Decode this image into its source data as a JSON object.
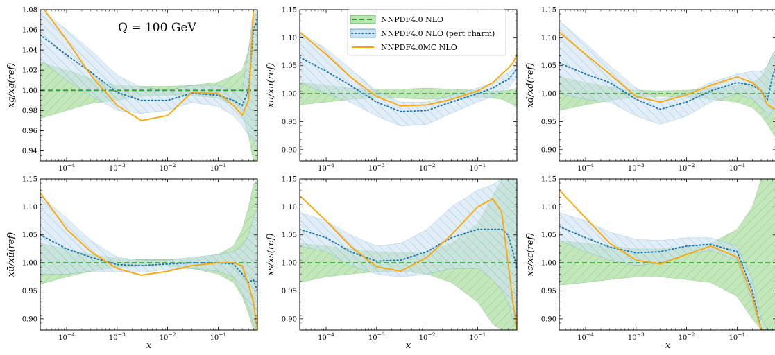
{
  "figure": {
    "annotation": "Q = 100 GeV"
  },
  "legend": {
    "entries": [
      {
        "label": "NNPDF4.0 NLO",
        "color": "#2ca02c",
        "style": "dashed",
        "band": true
      },
      {
        "label": "NNPDF4.0 NLO (pert charm)",
        "color": "#1f77b4",
        "style": "dotted",
        "band": true
      },
      {
        "label": "NNPDF4.0MC NLO",
        "color": "#ff9f00",
        "style": "solid",
        "band": false
      }
    ]
  },
  "colors": {
    "ref_band": "#b9e3b0",
    "pert_band": "#cfe3f3",
    "ref_line": "#2ca02c",
    "pert_line": "#1f77b4",
    "mc_line": "#ffa500"
  },
  "chart_data": [
    {
      "type": "line",
      "ylabel": "xg/xg(ref)",
      "xlabel": "",
      "xscale": "log",
      "xlim": [
        3e-05,
        0.6
      ],
      "ylim": [
        0.93,
        1.08
      ],
      "yticks": [
        "0.94",
        "0.96",
        "0.98",
        "1.00",
        "1.02",
        "1.04",
        "1.06",
        "1.08"
      ],
      "xticks": [
        "10^-4",
        "10^-3",
        "10^-2",
        "10^-1"
      ],
      "x": [
        3e-05,
        0.0001,
        0.0003,
        0.001,
        0.003,
        0.01,
        0.03,
        0.1,
        0.2,
        0.3,
        0.4,
        0.5,
        0.6
      ],
      "series": [
        {
          "name": "NNPDF4.0 NLO",
          "values": [
            1.0,
            1.0,
            1.0,
            1.0,
            1.0,
            1.0,
            1.0,
            1.0,
            1.0,
            1.0,
            1.0,
            1.0,
            1.0
          ],
          "band_upper": [
            1.028,
            1.02,
            1.012,
            1.005,
            1.004,
            1.004,
            1.005,
            1.008,
            1.015,
            1.02,
            1.04,
            1.07,
            1.09
          ],
          "band_lower": [
            0.972,
            0.98,
            0.987,
            0.99,
            0.994,
            0.995,
            0.995,
            0.992,
            0.985,
            0.975,
            0.955,
            0.93,
            0.91
          ]
        },
        {
          "name": "NNPDF4.0 NLO (pert charm)",
          "values": [
            1.055,
            1.035,
            1.018,
            0.998,
            0.99,
            0.99,
            0.997,
            0.995,
            0.99,
            0.985,
            1.0,
            1.06,
            1.07
          ],
          "band_upper": [
            1.08,
            1.06,
            1.04,
            1.015,
            1.003,
            1.0,
            1.005,
            1.005,
            1.0,
            1.0,
            1.04,
            1.08,
            1.09
          ],
          "band_lower": [
            1.03,
            1.01,
            0.995,
            0.98,
            0.977,
            0.98,
            0.988,
            0.984,
            0.975,
            0.965,
            0.955,
            0.95,
            0.94
          ]
        },
        {
          "name": "NNPDF4.0MC NLO",
          "values": [
            1.085,
            1.05,
            1.015,
            0.985,
            0.97,
            0.975,
            0.998,
            0.997,
            0.985,
            0.975,
            0.99,
            1.08,
            1.09
          ]
        }
      ]
    },
    {
      "type": "line",
      "ylabel": "xu/xu(ref)",
      "xlabel": "",
      "xscale": "log",
      "xlim": [
        3e-05,
        0.6
      ],
      "ylim": [
        0.88,
        1.15
      ],
      "yticks": [
        "0.90",
        "0.95",
        "1.00",
        "1.05",
        "1.10",
        "1.15"
      ],
      "xticks": [
        "10^-4",
        "10^-3",
        "10^-2",
        "10^-1"
      ],
      "x": [
        3e-05,
        0.0001,
        0.0003,
        0.001,
        0.003,
        0.01,
        0.03,
        0.1,
        0.2,
        0.3,
        0.4,
        0.5,
        0.6
      ],
      "series": [
        {
          "name": "NNPDF4.0 NLO",
          "values": [
            1.0,
            1.0,
            1.0,
            1.0,
            1.0,
            1.0,
            1.0,
            1.0,
            1.0,
            1.0,
            1.0,
            1.0,
            1.0
          ],
          "band_upper": [
            1.02,
            1.015,
            1.01,
            1.008,
            1.008,
            1.01,
            1.008,
            1.006,
            1.005,
            1.005,
            1.006,
            1.008,
            1.01
          ],
          "band_lower": [
            0.98,
            0.985,
            0.99,
            0.992,
            0.992,
            0.99,
            0.992,
            0.994,
            0.992,
            0.99,
            0.985,
            0.98,
            0.975
          ]
        },
        {
          "name": "NNPDF4.0 NLO (pert charm)",
          "values": [
            1.065,
            1.04,
            1.015,
            0.985,
            0.968,
            0.97,
            0.985,
            1.0,
            1.01,
            1.02,
            1.025,
            1.035,
            1.045
          ],
          "band_upper": [
            1.11,
            1.08,
            1.045,
            1.005,
            0.985,
            0.985,
            0.997,
            1.01,
            1.02,
            1.03,
            1.037,
            1.045,
            1.055
          ],
          "band_lower": [
            1.02,
            1.0,
            0.985,
            0.96,
            0.942,
            0.945,
            0.965,
            0.985,
            0.995,
            1.005,
            1.01,
            1.02,
            1.03
          ]
        },
        {
          "name": "NNPDF4.0MC NLO",
          "values": [
            1.11,
            1.07,
            1.03,
            0.995,
            0.978,
            0.98,
            0.99,
            1.005,
            1.02,
            1.035,
            1.045,
            1.055,
            1.07
          ]
        }
      ]
    },
    {
      "type": "line",
      "ylabel": "xd/xd(ref)",
      "xlabel": "",
      "xscale": "log",
      "xlim": [
        3e-05,
        0.6
      ],
      "ylim": [
        0.88,
        1.15
      ],
      "yticks": [
        "0.90",
        "0.95",
        "1.00",
        "1.05",
        "1.10",
        "1.15"
      ],
      "xticks": [
        "10^-4",
        "10^-3",
        "10^-2",
        "10^-1"
      ],
      "x": [
        3e-05,
        0.0001,
        0.0003,
        0.001,
        0.003,
        0.01,
        0.03,
        0.1,
        0.2,
        0.3,
        0.4,
        0.5,
        0.6
      ],
      "series": [
        {
          "name": "NNPDF4.0 NLO",
          "values": [
            1.0,
            1.0,
            1.0,
            1.0,
            1.0,
            1.0,
            1.0,
            1.0,
            1.0,
            1.0,
            1.0,
            1.0,
            1.0
          ],
          "band_upper": [
            1.03,
            1.02,
            1.012,
            1.006,
            1.005,
            1.006,
            1.01,
            1.015,
            1.02,
            1.03,
            1.05,
            1.07,
            1.08
          ],
          "band_lower": [
            0.97,
            0.98,
            0.988,
            0.994,
            0.995,
            0.994,
            0.99,
            0.985,
            0.975,
            0.96,
            0.945,
            0.93,
            0.92
          ]
        },
        {
          "name": "NNPDF4.0 NLO (pert charm)",
          "values": [
            1.055,
            1.035,
            1.02,
            0.99,
            0.972,
            0.985,
            1.005,
            1.02,
            1.015,
            1.005,
            0.99,
            1.03,
            1.05
          ],
          "band_upper": [
            1.13,
            1.09,
            1.05,
            1.01,
            0.99,
            1.0,
            1.02,
            1.035,
            1.04,
            1.04,
            1.05,
            1.07,
            1.08
          ],
          "band_lower": [
            1.0,
            0.99,
            0.985,
            0.96,
            0.945,
            0.96,
            0.985,
            1.0,
            0.99,
            0.975,
            0.955,
            0.97,
            0.98
          ]
        },
        {
          "name": "NNPDF4.0MC NLO",
          "values": [
            1.11,
            1.07,
            1.035,
            0.995,
            0.985,
            0.998,
            1.015,
            1.03,
            1.02,
            1.005,
            0.98,
            0.975,
            0.97
          ]
        }
      ]
    },
    {
      "type": "line",
      "ylabel": "xū/xū(ref)",
      "xlabel": "x",
      "xscale": "log",
      "xlim": [
        3e-05,
        0.6
      ],
      "ylim": [
        0.88,
        1.15
      ],
      "yticks": [
        "0.90",
        "0.95",
        "1.00",
        "1.05",
        "1.10",
        "1.15"
      ],
      "xticks": [
        "10^-4",
        "10^-3",
        "10^-2",
        "10^-1"
      ],
      "x": [
        3e-05,
        0.0001,
        0.0003,
        0.001,
        0.003,
        0.01,
        0.03,
        0.1,
        0.2,
        0.3,
        0.4,
        0.5,
        0.6
      ],
      "series": [
        {
          "name": "NNPDF4.0 NLO",
          "values": [
            1.0,
            1.0,
            1.0,
            1.0,
            1.0,
            1.0,
            1.0,
            1.0,
            1.0,
            1.0,
            1.0,
            1.0,
            1.0
          ],
          "band_upper": [
            1.035,
            1.025,
            1.015,
            1.008,
            1.006,
            1.006,
            1.008,
            1.015,
            1.03,
            1.06,
            1.1,
            1.14,
            1.15
          ],
          "band_lower": [
            0.962,
            0.975,
            0.985,
            0.992,
            0.994,
            0.994,
            0.99,
            0.98,
            0.965,
            0.94,
            0.91,
            0.88,
            0.88
          ]
        },
        {
          "name": "NNPDF4.0 NLO (pert charm)",
          "values": [
            1.05,
            1.025,
            1.01,
            0.997,
            0.995,
            0.998,
            1.0,
            1.0,
            0.998,
            0.98,
            0.965,
            0.97,
            0.95
          ],
          "band_upper": [
            1.12,
            1.08,
            1.04,
            1.01,
            1.005,
            1.005,
            1.01,
            1.015,
            1.02,
            1.03,
            1.05,
            1.08,
            1.1
          ],
          "band_lower": [
            0.98,
            0.98,
            0.985,
            0.985,
            0.983,
            0.988,
            0.99,
            0.985,
            0.975,
            0.945,
            0.92,
            0.89,
            0.88
          ]
        },
        {
          "name": "NNPDF4.0MC NLO",
          "values": [
            1.125,
            1.06,
            1.02,
            0.99,
            0.978,
            0.985,
            0.995,
            1.0,
            1.0,
            0.995,
            0.96,
            0.93,
            0.88
          ]
        }
      ]
    },
    {
      "type": "line",
      "ylabel": "xs/xs(ref)",
      "xlabel": "x",
      "xscale": "log",
      "xlim": [
        3e-05,
        0.6
      ],
      "ylim": [
        0.88,
        1.15
      ],
      "yticks": [
        "0.90",
        "0.95",
        "1.00",
        "1.05",
        "1.10",
        "1.15"
      ],
      "xticks": [
        "10^-4",
        "10^-3",
        "10^-2",
        "10^-1"
      ],
      "x": [
        3e-05,
        0.0001,
        0.0003,
        0.001,
        0.003,
        0.01,
        0.03,
        0.1,
        0.2,
        0.3,
        0.4,
        0.5,
        0.6
      ],
      "series": [
        {
          "name": "NNPDF4.0 NLO",
          "values": [
            1.0,
            1.0,
            1.0,
            1.0,
            1.0,
            1.0,
            1.0,
            1.0,
            1.0,
            1.0,
            1.0,
            1.0,
            1.0
          ],
          "band_upper": [
            1.035,
            1.03,
            1.025,
            1.02,
            1.018,
            1.02,
            1.035,
            1.07,
            1.12,
            1.15,
            1.15,
            1.15,
            1.15
          ],
          "band_lower": [
            0.965,
            0.975,
            0.98,
            0.984,
            0.985,
            0.98,
            0.965,
            0.93,
            0.89,
            0.88,
            0.88,
            0.88,
            0.88
          ]
        },
        {
          "name": "NNPDF4.0 NLO (pert charm)",
          "values": [
            1.06,
            1.045,
            1.02,
            1.003,
            1.005,
            1.02,
            1.045,
            1.06,
            1.06,
            1.06,
            1.05,
            1.02,
            0.99
          ],
          "band_upper": [
            1.09,
            1.075,
            1.05,
            1.03,
            1.035,
            1.06,
            1.1,
            1.13,
            1.14,
            1.15,
            1.15,
            1.15,
            1.15
          ],
          "band_lower": [
            1.03,
            1.02,
            0.995,
            0.98,
            0.975,
            0.98,
            0.99,
            0.99,
            0.97,
            0.95,
            0.93,
            0.9,
            0.88
          ]
        },
        {
          "name": "NNPDF4.0MC NLO",
          "values": [
            1.12,
            1.075,
            1.03,
            0.993,
            0.985,
            1.01,
            1.05,
            1.1,
            1.115,
            1.09,
            1.0,
            0.93,
            0.88
          ]
        }
      ]
    },
    {
      "type": "line",
      "ylabel": "xc/xc(ref)",
      "xlabel": "x",
      "xscale": "log",
      "xlim": [
        3e-05,
        0.6
      ],
      "ylim": [
        0.88,
        1.15
      ],
      "yticks": [
        "0.90",
        "0.95",
        "1.00",
        "1.05",
        "1.10",
        "1.15"
      ],
      "xticks": [
        "10^-4",
        "10^-3",
        "10^-2",
        "10^-1"
      ],
      "x": [
        3e-05,
        0.0001,
        0.0003,
        0.001,
        0.003,
        0.01,
        0.03,
        0.1,
        0.2,
        0.3,
        0.4,
        0.5,
        0.6
      ],
      "series": [
        {
          "name": "NNPDF4.0 NLO",
          "values": [
            1.0,
            1.0,
            1.0,
            1.0,
            1.0,
            1.0,
            1.0,
            1.0,
            1.0,
            1.0,
            1.0,
            1.0,
            1.0
          ],
          "band_upper": [
            1.04,
            1.035,
            1.03,
            1.025,
            1.025,
            1.03,
            1.035,
            1.06,
            1.1,
            1.15,
            1.15,
            1.15,
            1.15
          ],
          "band_lower": [
            0.96,
            0.965,
            0.97,
            0.975,
            0.975,
            0.97,
            0.965,
            0.94,
            0.9,
            0.88,
            0.88,
            0.88,
            0.88
          ]
        },
        {
          "name": "NNPDF4.0 NLO (pert charm)",
          "values": [
            1.065,
            1.045,
            1.028,
            1.018,
            1.02,
            1.03,
            1.033,
            1.02,
            0.95,
            0.88,
            0.88,
            0.88,
            0.88
          ],
          "band_upper": [
            1.09,
            1.075,
            1.055,
            1.042,
            1.04,
            1.045,
            1.045,
            1.03,
            0.97,
            0.9,
            0.88,
            0.88,
            0.88
          ],
          "band_lower": [
            1.04,
            1.02,
            1.005,
            0.995,
            1.0,
            1.015,
            1.022,
            1.005,
            0.93,
            0.88,
            0.88,
            0.88,
            0.88
          ]
        },
        {
          "name": "NNPDF4.0MC NLO",
          "values": [
            1.13,
            1.08,
            1.035,
            1.005,
            0.998,
            1.015,
            1.03,
            1.01,
            0.94,
            0.88,
            0.88,
            0.88,
            0.88
          ]
        }
      ]
    }
  ]
}
